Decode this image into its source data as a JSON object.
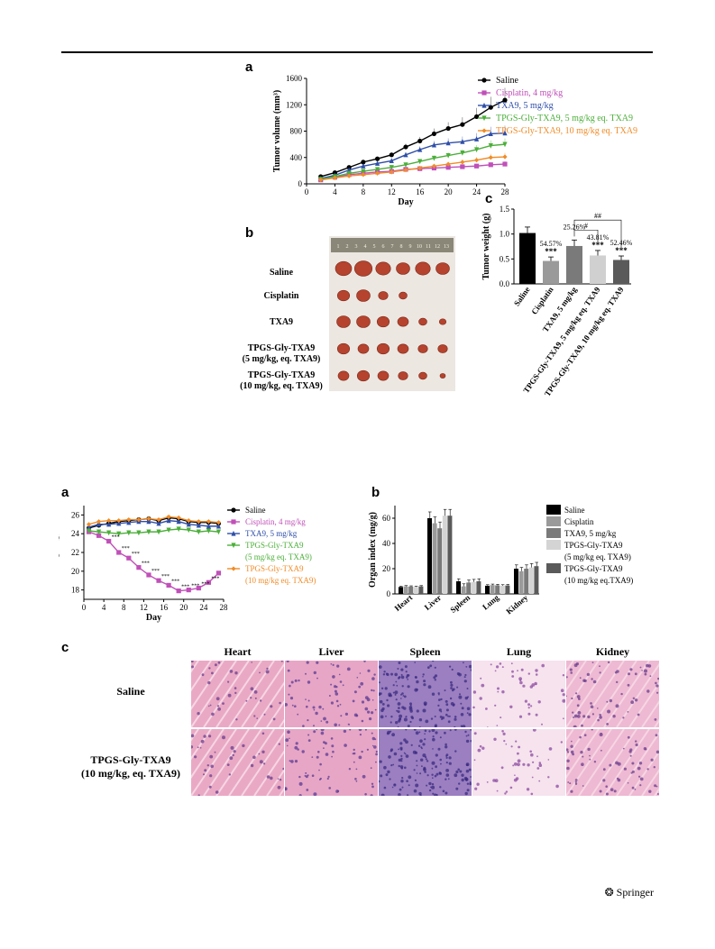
{
  "figure1": {
    "panel_a": {
      "label": "a",
      "chart_data": {
        "type": "line",
        "xlabel": "Day",
        "ylabel": "Tumor volume (mm³)",
        "xlim": [
          0,
          28
        ],
        "ylim": [
          0,
          1600
        ],
        "xticks": [
          0,
          4,
          8,
          12,
          16,
          20,
          24,
          28
        ],
        "yticks": [
          0,
          400,
          800,
          1200,
          1600
        ],
        "x": [
          2,
          4,
          6,
          8,
          10,
          12,
          14,
          16,
          18,
          20,
          22,
          24,
          26,
          28
        ],
        "series": [
          {
            "name": "Saline",
            "color": "#000000",
            "marker": "circle",
            "values": [
              110,
              170,
              250,
              330,
              380,
              440,
              560,
              650,
              760,
              840,
              900,
              1020,
              1160,
              1270
            ]
          },
          {
            "name": "Cisplatin, 4 mg/kg",
            "color": "#c050b8",
            "marker": "square",
            "values": [
              60,
              100,
              140,
              160,
              180,
              190,
              220,
              230,
              240,
              250,
              260,
              270,
              290,
              300
            ]
          },
          {
            "name": "TXA9, 5 mg/kg",
            "color": "#2f4fa8",
            "marker": "triangle",
            "values": [
              80,
              130,
              210,
              270,
              310,
              350,
              440,
              520,
              590,
              620,
              640,
              680,
              760,
              770
            ]
          },
          {
            "name": "TPGS-Gly-TXA9, 5 mg/kg eq. TXA9",
            "color": "#4caf3a",
            "marker": "triangle-down",
            "values": [
              70,
              110,
              160,
              190,
              220,
              250,
              290,
              340,
              390,
              430,
              470,
              520,
              580,
              600
            ]
          },
          {
            "name": "TPGS-Gly-TXA9, 10 mg/kg eq. TXA9",
            "color": "#f08c28",
            "marker": "diamond",
            "values": [
              60,
              90,
              120,
              140,
              160,
              180,
              210,
              240,
              270,
              300,
              330,
              360,
              400,
              410
            ]
          }
        ]
      }
    },
    "panel_b": {
      "label": "b",
      "rows": [
        "Saline",
        "Cisplatin",
        "TXA9",
        "TPGS-Gly-TXA9",
        "(5 mg/kg, eq. TXA9)",
        "TPGS-Gly-TXA9",
        "(10 mg/kg, eq. TXA9)"
      ],
      "ruler_ticks": [
        "1",
        "2",
        "3",
        "4",
        "5",
        "6",
        "7",
        "8",
        "9",
        "10",
        "11",
        "12",
        "13"
      ]
    },
    "panel_c": {
      "label": "c",
      "chart_data": {
        "type": "bar",
        "ylabel": "Tumor weight (g)",
        "ylim": [
          0,
          1.5
        ],
        "yticks": [
          "0.0",
          "0.5",
          "1.0",
          "1.5"
        ],
        "categories": [
          "Saline",
          "Cisplatin",
          "TXA9, 5 mg/kg",
          "TPGS-Gly-TXA9, 5 mg/kg eq. TXA9",
          "TPGS-Gly-TXA9, 10 mg/kg eq. TXA9"
        ],
        "values": [
          1.02,
          0.46,
          0.76,
          0.57,
          0.48
        ],
        "errors": [
          0.12,
          0.08,
          0.12,
          0.1,
          0.08
        ],
        "colors": [
          "#000000",
          "#9a9a9a",
          "#7a7a7a",
          "#d0d0d0",
          "#5a5a5a"
        ],
        "percent_labels": [
          "",
          "54.57%",
          "25.26%",
          "43.81%",
          "52.46%"
        ],
        "stars": [
          "",
          "***",
          "",
          "***",
          "***"
        ],
        "brackets": [
          "#",
          "##"
        ]
      }
    }
  },
  "figure2": {
    "panel_a": {
      "label": "a",
      "chart_data": {
        "type": "line",
        "xlabel": "Day",
        "ylabel": "Weight (g)",
        "xlim": [
          0,
          28
        ],
        "ylim": [
          17,
          27
        ],
        "xticks": [
          0,
          4,
          8,
          12,
          16,
          20,
          24,
          28
        ],
        "yticks": [
          18,
          20,
          22,
          24,
          26
        ],
        "x": [
          1,
          3,
          5,
          7,
          9,
          11,
          13,
          15,
          17,
          19,
          21,
          23,
          25,
          27
        ],
        "series": [
          {
            "name": "Saline",
            "color": "#000000",
            "marker": "circle",
            "values": [
              24.6,
              24.9,
              25.1,
              25.3,
              25.4,
              25.5,
              25.6,
              25.4,
              25.7,
              25.6,
              25.3,
              25.2,
              25.2,
              25.1
            ]
          },
          {
            "name": "Cisplatin, 4 mg/kg",
            "color": "#c050b8",
            "marker": "square",
            "values": [
              24.2,
              23.8,
              23.2,
              22.0,
              21.4,
              20.4,
              19.6,
              19.0,
              18.5,
              17.9,
              18.0,
              18.2,
              18.8,
              19.8
            ]
          },
          {
            "name": "TXA9, 5 mg/kg",
            "color": "#2f4fa8",
            "marker": "triangle",
            "values": [
              24.7,
              25.0,
              25.0,
              25.1,
              25.2,
              25.3,
              25.3,
              25.1,
              25.4,
              25.3,
              25.0,
              24.9,
              24.8,
              24.8
            ]
          },
          {
            "name": "TPGS-Gly-TXA9\n(5 mg/kg eq. TXA9)",
            "color": "#4caf3a",
            "marker": "triangle-down",
            "values": [
              24.3,
              24.2,
              24.1,
              24.0,
              24.1,
              24.1,
              24.2,
              24.2,
              24.4,
              24.5,
              24.4,
              24.2,
              24.3,
              24.2
            ]
          },
          {
            "name": "TPGS-Gly-TXA9\n(10 mg/kg eq. TXA9)",
            "color": "#f08c28",
            "marker": "diamond",
            "values": [
              25.0,
              25.3,
              25.4,
              25.4,
              25.5,
              25.5,
              25.6,
              25.5,
              25.8,
              25.7,
              25.4,
              25.3,
              25.3,
              25.2
            ]
          }
        ],
        "legend": [
          "Saline",
          "Cisplatin, 4 mg/kg",
          "TXA9, 5 mg/kg",
          "TPGS-Gly-TXA9",
          "(5 mg/kg eq. TXA9)",
          "TPGS-Gly-TXA9",
          "(10 mg/kg eq. TXA9)"
        ]
      }
    },
    "panel_b": {
      "label": "b",
      "chart_data": {
        "type": "bar",
        "ylabel": "Organ index (mg/g)",
        "ylim": [
          0,
          70
        ],
        "yticks": [
          0,
          20,
          40,
          60
        ],
        "categories": [
          "Heart",
          "Liver",
          "Spleen",
          "Lung",
          "Kidney"
        ],
        "series": [
          {
            "name": "Saline",
            "color": "#000000",
            "values": [
              5.5,
              60,
              10,
              6.5,
              20
            ]
          },
          {
            "name": "Cisplatin",
            "color": "#9a9a9a",
            "values": [
              6,
              56,
              6,
              7,
              18
            ]
          },
          {
            "name": "TXA9, 5 mg/kg",
            "color": "#7a7a7a",
            "values": [
              5.8,
              52,
              9,
              6.8,
              20
            ]
          },
          {
            "name": "TPGS-Gly-TXA9\n(5 mg/kg eq. TXA9)",
            "color": "#d4d4d4",
            "values": [
              5.5,
              62,
              9.5,
              6.5,
              21
            ]
          },
          {
            "name": "TPGS-Gly-TXA9\n(10 mg/kg eq.TXA9)",
            "color": "#5a5a5a",
            "values": [
              6,
              62,
              10,
              6.7,
              22
            ]
          }
        ],
        "errors": [
          0.6,
          5,
          2,
          0.8,
          3
        ],
        "legend": [
          "Saline",
          "Cisplatin",
          "TXA9, 5 mg/kg",
          "TPGS-Gly-TXA9",
          "(5 mg/kg eq. TXA9)",
          "TPGS-Gly-TXA9",
          "(10 mg/kg eq.TXA9)"
        ]
      }
    },
    "panel_c": {
      "label": "c",
      "columns": [
        "Heart",
        "Liver",
        "Spleen",
        "Lung",
        "Kidney"
      ],
      "rows": [
        "Saline",
        "TPGS-Gly-TXA9",
        "(10 mg/kg, eq. TXA9)"
      ]
    }
  },
  "footer": {
    "publisher": "Springer"
  }
}
